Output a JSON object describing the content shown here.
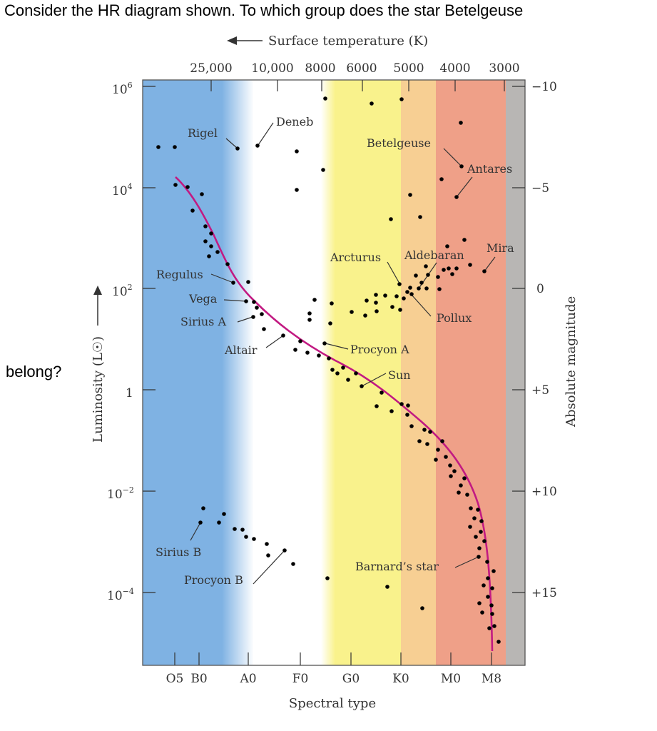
{
  "question": {
    "line1": "Consider the HR diagram shown. To which group does the star Betelgeuse",
    "line2": "belong?"
  },
  "chart_data": {
    "type": "scatter",
    "title": "",
    "top_axis": {
      "label": "Surface temperature (K)",
      "ticks": [
        "25,000",
        "10,000",
        "8000",
        "6000",
        "5000",
        "4000",
        "3000"
      ]
    },
    "bottom_axis": {
      "label": "Spectral type",
      "ticks": [
        "O5",
        "B0",
        "A0",
        "F0",
        "G0",
        "K0",
        "M0",
        "M8"
      ]
    },
    "left_axis": {
      "label": "Luminosity (L☉)",
      "scale": "log",
      "ticks": [
        {
          "value": 1000000,
          "label_base": "10",
          "label_exp": "6"
        },
        {
          "value": 10000,
          "label_base": "10",
          "label_exp": "4"
        },
        {
          "value": 100,
          "label_base": "10",
          "label_exp": "2"
        },
        {
          "value": 1,
          "label_base": "1",
          "label_exp": ""
        },
        {
          "value": 0.01,
          "label_base": "10",
          "label_exp": "−2"
        },
        {
          "value": 0.0001,
          "label_base": "10",
          "label_exp": "−4"
        }
      ]
    },
    "right_axis": {
      "label": "Absolute magnitude",
      "ticks": [
        "−10",
        "−5",
        "0",
        "+5",
        "+10",
        "+15"
      ]
    },
    "spectral_bands": [
      {
        "from": "O5",
        "to": "A0",
        "color": "#7fb2e3"
      },
      {
        "from": "A0",
        "to": "F5",
        "color": "#ffffff"
      },
      {
        "from": "F5",
        "to": "K0",
        "color": "#f9f28c"
      },
      {
        "from": "K0",
        "to": "M0",
        "color": "#f7cf93"
      },
      {
        "from": "M0",
        "to": "M8",
        "color": "#efa088"
      },
      {
        "from": "M8",
        "to": "end",
        "color": "#b8b6b4"
      }
    ],
    "main_sequence_color": "#c21a82",
    "labeled_stars": [
      {
        "name": "Rigel"
      },
      {
        "name": "Deneb"
      },
      {
        "name": "Betelgeuse"
      },
      {
        "name": "Antares"
      },
      {
        "name": "Arcturus"
      },
      {
        "name": "Aldebaran"
      },
      {
        "name": "Mira"
      },
      {
        "name": "Pollux"
      },
      {
        "name": "Regulus"
      },
      {
        "name": "Vega"
      },
      {
        "name": "Sirius A"
      },
      {
        "name": "Altair"
      },
      {
        "name": "Procyon A"
      },
      {
        "name": "Sun"
      },
      {
        "name": "Sirius B"
      },
      {
        "name": "Procyon B"
      },
      {
        "name": "Barnard’s star"
      }
    ]
  }
}
